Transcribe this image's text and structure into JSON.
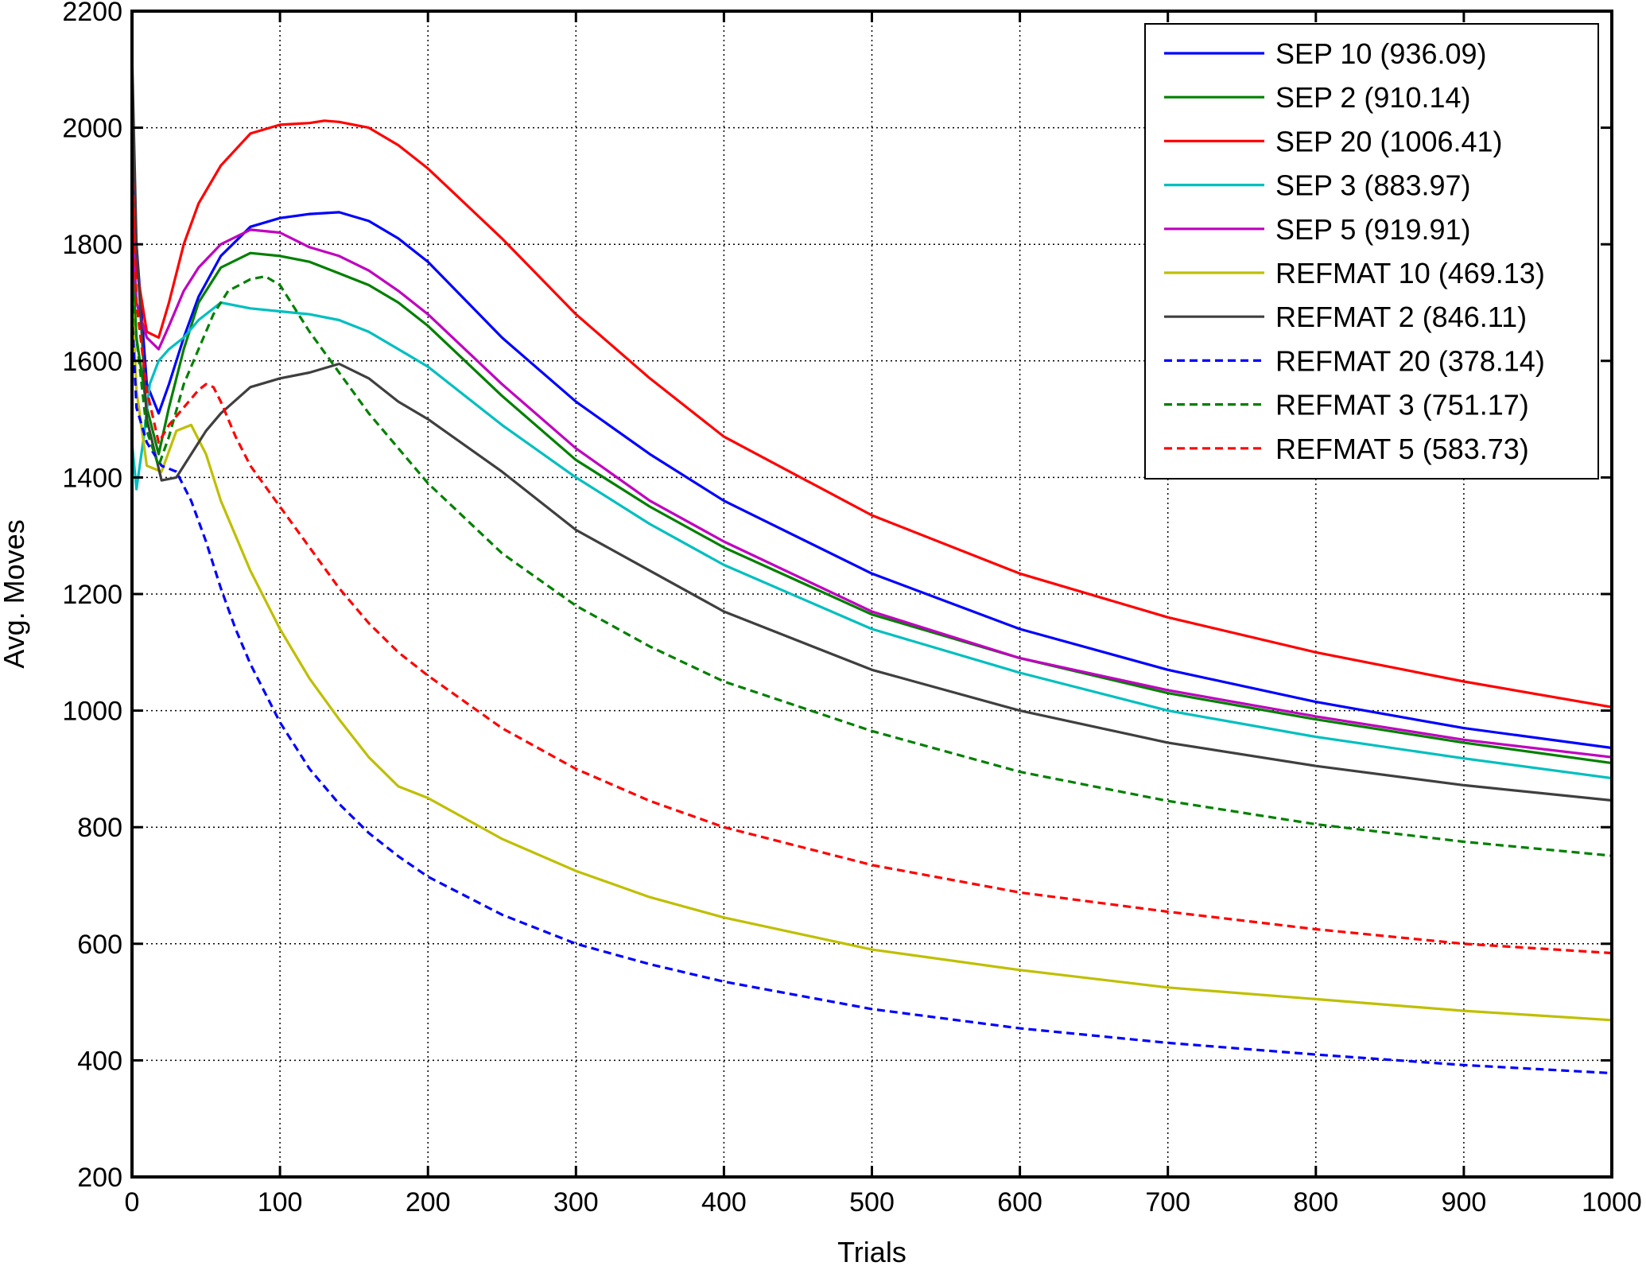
{
  "chart_data": {
    "type": "line",
    "title": "",
    "xlabel": "Trials",
    "ylabel": "Avg. Moves",
    "xlim": [
      0,
      1000
    ],
    "ylim": [
      200,
      2200
    ],
    "xticks": [
      0,
      100,
      200,
      300,
      400,
      500,
      600,
      700,
      800,
      900,
      1000
    ],
    "yticks": [
      200,
      400,
      600,
      800,
      1000,
      1200,
      1400,
      1600,
      1800,
      2000,
      2200
    ],
    "grid": true,
    "legend_position": "top-right",
    "series": [
      {
        "name": "SEP 10 (936.09)",
        "color": "#0000ff",
        "dash": "solid",
        "x": [
          0,
          3,
          10,
          18,
          25,
          35,
          45,
          60,
          80,
          100,
          120,
          140,
          160,
          180,
          200,
          250,
          300,
          350,
          400,
          500,
          600,
          700,
          800,
          900,
          1000
        ],
        "y": [
          1960,
          1800,
          1560,
          1510,
          1560,
          1640,
          1710,
          1780,
          1830,
          1845,
          1852,
          1855,
          1840,
          1810,
          1770,
          1640,
          1530,
          1440,
          1360,
          1235,
          1140,
          1070,
          1015,
          970,
          936
        ]
      },
      {
        "name": "SEP 2 (910.14)",
        "color": "#008000",
        "dash": "solid",
        "x": [
          0,
          3,
          10,
          18,
          25,
          35,
          45,
          60,
          80,
          100,
          120,
          140,
          160,
          180,
          200,
          250,
          300,
          350,
          400,
          500,
          600,
          700,
          800,
          900,
          1000
        ],
        "y": [
          1780,
          1640,
          1520,
          1440,
          1520,
          1620,
          1700,
          1760,
          1785,
          1780,
          1770,
          1750,
          1730,
          1700,
          1660,
          1540,
          1430,
          1350,
          1280,
          1165,
          1090,
          1030,
          985,
          945,
          910
        ]
      },
      {
        "name": "SEP 20 (1006.41)",
        "color": "#ff0000",
        "dash": "solid",
        "x": [
          0,
          3,
          10,
          18,
          25,
          35,
          45,
          60,
          80,
          100,
          120,
          130,
          140,
          160,
          180,
          200,
          250,
          300,
          350,
          400,
          500,
          600,
          700,
          800,
          900,
          1000
        ],
        "y": [
          1900,
          1760,
          1650,
          1640,
          1700,
          1800,
          1870,
          1935,
          1990,
          2005,
          2008,
          2012,
          2010,
          2000,
          1970,
          1930,
          1810,
          1680,
          1570,
          1470,
          1335,
          1235,
          1160,
          1100,
          1050,
          1006
        ]
      },
      {
        "name": "SEP 3 (883.97)",
        "color": "#00bfbf",
        "dash": "solid",
        "x": [
          0,
          3,
          8,
          12,
          18,
          25,
          35,
          45,
          60,
          80,
          100,
          120,
          140,
          160,
          180,
          200,
          250,
          300,
          350,
          400,
          500,
          600,
          700,
          800,
          900,
          1000
        ],
        "y": [
          1460,
          1380,
          1470,
          1560,
          1600,
          1620,
          1640,
          1670,
          1700,
          1690,
          1685,
          1680,
          1670,
          1650,
          1620,
          1590,
          1490,
          1400,
          1320,
          1250,
          1140,
          1065,
          1000,
          955,
          918,
          884
        ]
      },
      {
        "name": "SEP 5 (919.91)",
        "color": "#bf00bf",
        "dash": "solid",
        "x": [
          0,
          3,
          10,
          18,
          25,
          35,
          45,
          60,
          80,
          100,
          120,
          140,
          160,
          180,
          200,
          250,
          300,
          350,
          400,
          500,
          600,
          700,
          800,
          900,
          1000
        ],
        "y": [
          1850,
          1700,
          1640,
          1620,
          1660,
          1720,
          1760,
          1800,
          1825,
          1820,
          1795,
          1780,
          1755,
          1720,
          1680,
          1560,
          1450,
          1360,
          1290,
          1170,
          1090,
          1035,
          990,
          950,
          920
        ]
      },
      {
        "name": "REFMAT 10 (469.13)",
        "color": "#bfbf00",
        "dash": "solid",
        "x": [
          0,
          3,
          10,
          20,
          30,
          40,
          50,
          60,
          80,
          100,
          120,
          140,
          160,
          180,
          200,
          250,
          300,
          350,
          400,
          500,
          600,
          700,
          800,
          900,
          1000
        ],
        "y": [
          1720,
          1550,
          1420,
          1410,
          1480,
          1490,
          1440,
          1360,
          1240,
          1140,
          1055,
          985,
          920,
          870,
          850,
          780,
          725,
          680,
          645,
          590,
          555,
          525,
          505,
          485,
          469
        ]
      },
      {
        "name": "REFMAT 2 (846.11)",
        "color": "#3f3f3f",
        "dash": "solid",
        "x": [
          0,
          3,
          10,
          20,
          30,
          40,
          50,
          60,
          80,
          100,
          120,
          140,
          160,
          180,
          200,
          250,
          300,
          350,
          400,
          500,
          600,
          700,
          800,
          900,
          1000
        ],
        "y": [
          2130,
          1800,
          1500,
          1395,
          1400,
          1440,
          1480,
          1510,
          1555,
          1570,
          1580,
          1595,
          1570,
          1530,
          1500,
          1410,
          1310,
          1240,
          1170,
          1070,
          1000,
          945,
          905,
          872,
          846
        ]
      },
      {
        "name": "REFMAT 20 (378.14)",
        "color": "#0000ff",
        "dash": "dashed",
        "x": [
          0,
          3,
          10,
          20,
          30,
          40,
          50,
          60,
          70,
          80,
          100,
          120,
          140,
          160,
          180,
          200,
          250,
          300,
          350,
          400,
          500,
          600,
          700,
          800,
          900,
          1000
        ],
        "y": [
          1680,
          1520,
          1460,
          1420,
          1410,
          1360,
          1290,
          1210,
          1140,
          1080,
          980,
          900,
          840,
          790,
          750,
          715,
          650,
          600,
          565,
          535,
          488,
          455,
          430,
          410,
          392,
          378
        ]
      },
      {
        "name": "REFMAT 3 (751.17)",
        "color": "#008000",
        "dash": "dashed",
        "x": [
          0,
          3,
          10,
          18,
          25,
          35,
          45,
          55,
          65,
          80,
          90,
          100,
          110,
          120,
          140,
          160,
          180,
          200,
          250,
          300,
          350,
          400,
          500,
          600,
          700,
          800,
          900,
          1000
        ],
        "y": [
          1760,
          1640,
          1480,
          1420,
          1470,
          1560,
          1620,
          1680,
          1720,
          1740,
          1745,
          1730,
          1690,
          1650,
          1580,
          1510,
          1450,
          1390,
          1270,
          1180,
          1110,
          1050,
          965,
          895,
          845,
          805,
          775,
          751
        ]
      },
      {
        "name": "REFMAT 5 (583.73)",
        "color": "#ff0000",
        "dash": "dashed",
        "x": [
          0,
          3,
          10,
          18,
          25,
          35,
          45,
          50,
          55,
          60,
          70,
          80,
          100,
          120,
          140,
          160,
          180,
          200,
          250,
          300,
          350,
          400,
          500,
          600,
          700,
          800,
          900,
          1000
        ],
        "y": [
          1950,
          1700,
          1550,
          1460,
          1490,
          1520,
          1550,
          1560,
          1555,
          1530,
          1470,
          1420,
          1350,
          1280,
          1210,
          1150,
          1100,
          1060,
          970,
          900,
          845,
          800,
          735,
          688,
          655,
          625,
          600,
          584
        ]
      }
    ]
  }
}
